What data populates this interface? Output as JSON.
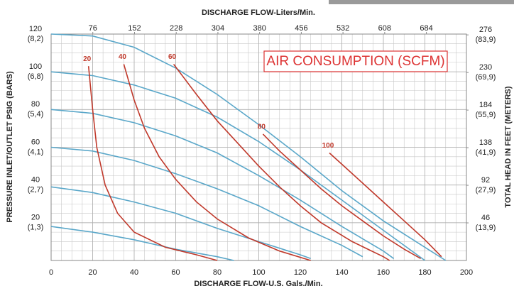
{
  "chart_data": {
    "type": "line",
    "x_label": "DISCHARGE FLOW-U.S. Gals./Min.",
    "x2_label": "DISCHARGE FLOW-Liters/Min.",
    "y_label": "PRESSURE INLET/OUTLET PSIG (BARS)",
    "y2_label": "TOTAL HEAD IN FEET (METERS)",
    "annotation": "AIR CONSUMPTION (SCFM)",
    "xlim": [
      0,
      200
    ],
    "xticks": [
      0,
      20,
      40,
      60,
      80,
      100,
      120,
      140,
      160,
      180,
      200
    ],
    "x2lim": [
      0,
      757
    ],
    "x2ticks": [
      76,
      152,
      228,
      304,
      380,
      456,
      532,
      608,
      684
    ],
    "ylim": [
      0,
      120
    ],
    "yticks": [
      20,
      40,
      60,
      80,
      100,
      120
    ],
    "ytick_bar_labels": [
      "(1,3)",
      "(2,7)",
      "(4,1)",
      "(5,4)",
      "(6,8)",
      "(8,2)"
    ],
    "y2lim": [
      0,
      277
    ],
    "y2ticks": [
      46,
      92,
      138,
      184,
      230,
      276
    ],
    "y2tick_meter_labels": [
      "(13,9)",
      "(27,9)",
      "(41,9)",
      "(55,9)",
      "(69,9)",
      "(83,9)"
    ],
    "grid": true,
    "series": [
      {
        "color": "#5aa7c9",
        "x": [
          0,
          20,
          40,
          60,
          80,
          100,
          120,
          140,
          160,
          180,
          190
        ],
        "values": [
          120,
          119,
          113,
          102,
          88,
          72,
          55,
          37,
          21,
          7,
          0
        ]
      },
      {
        "color": "#5aa7c9",
        "x": [
          0,
          20,
          40,
          60,
          80,
          100,
          120,
          140,
          160,
          175,
          180
        ],
        "values": [
          100,
          98,
          93,
          86,
          76,
          63,
          48,
          32,
          16,
          4,
          0
        ]
      },
      {
        "color": "#5aa7c9",
        "x": [
          0,
          20,
          40,
          60,
          80,
          100,
          120,
          140,
          160,
          165
        ],
        "values": [
          80,
          78,
          73,
          66,
          57,
          45,
          32,
          18,
          5,
          1
        ]
      },
      {
        "color": "#5aa7c9",
        "x": [
          0,
          20,
          40,
          60,
          80,
          100,
          120,
          140,
          150
        ],
        "values": [
          60,
          58,
          53,
          46,
          38,
          29,
          18,
          8,
          2
        ]
      },
      {
        "color": "#5aa7c9",
        "x": [
          0,
          20,
          40,
          60,
          80,
          100,
          120,
          125
        ],
        "values": [
          39,
          36,
          31,
          25,
          17,
          10,
          3,
          1
        ]
      },
      {
        "color": "#5aa7c9",
        "x": [
          0,
          20,
          40,
          60,
          80,
          88
        ],
        "values": [
          18,
          15,
          11,
          6,
          2,
          0
        ]
      },
      {
        "name": "20",
        "color": "#c0392b",
        "x": [
          18,
          20,
          22,
          26,
          32,
          40,
          55,
          70,
          80
        ],
        "values": [
          103,
          80,
          60,
          40,
          25,
          15,
          7,
          3,
          0
        ]
      },
      {
        "name": "40",
        "color": "#c0392b",
        "x": [
          35,
          40,
          45,
          52,
          60,
          70,
          80,
          95,
          110,
          125
        ],
        "values": [
          104,
          85,
          70,
          55,
          43,
          31,
          22,
          12,
          5,
          0
        ]
      },
      {
        "name": "60",
        "color": "#c0392b",
        "x": [
          59,
          70,
          80,
          90,
          100,
          110,
          120,
          130,
          145,
          160,
          163
        ],
        "values": [
          104,
          88,
          74,
          62,
          50,
          39,
          29,
          20,
          10,
          2,
          0
        ]
      },
      {
        "name": "80",
        "color": "#c0392b",
        "x": [
          102,
          110,
          120,
          130,
          140,
          150,
          160,
          170,
          178
        ],
        "values": [
          67,
          58,
          48,
          38,
          29,
          21,
          13,
          6,
          1
        ]
      },
      {
        "name": "100",
        "color": "#c0392b",
        "x": [
          134,
          140,
          150,
          160,
          170,
          180,
          188
        ],
        "values": [
          57,
          51,
          41,
          31,
          21,
          11,
          2
        ]
      }
    ]
  }
}
